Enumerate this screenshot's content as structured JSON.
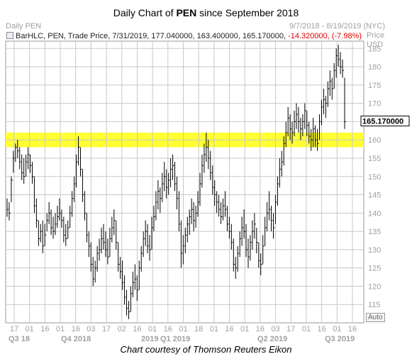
{
  "title_prefix": "Daily Chart of ",
  "title_ticker": "PEN",
  "title_suffix": " since September 2018",
  "panel_label": "Daily PEN",
  "date_range": "9/7/2018 - 8/19/2019 (NYC)",
  "legend": {
    "text": "BarHLC, PEN, Trade Price, 7/31/2019, 177.040000, 163.400000, 165.170000,",
    "change": "-14.320000, (-7.98%)"
  },
  "price_header": [
    "Price",
    "USD"
  ],
  "auto_label": "Auto",
  "last_price_label": "165.170000",
  "caption": "Chart courtesy of Thomson Reuters Eikon",
  "colors": {
    "bars": "#000000",
    "band": "#ffff33",
    "grid": "#c8c8c8",
    "accent_negative": "#e00000"
  },
  "chart_data": {
    "type": "bar",
    "style": "HLC",
    "ylim": [
      110,
      187
    ],
    "y_ticks": [
      115,
      120,
      125,
      130,
      135,
      140,
      145,
      150,
      155,
      160,
      165,
      170,
      175,
      180,
      185
    ],
    "x_ticks": [
      "17",
      "01",
      "16",
      "01",
      "16",
      "03",
      "17",
      "02",
      "16",
      "01",
      "16",
      "01",
      "18",
      "01",
      "16",
      "01",
      "16",
      "03",
      "17",
      "01",
      "16",
      "01",
      "16"
    ],
    "period_labels": [
      "Q3 18",
      "Q4 2018",
      "2019",
      "Q1 2019",
      "Q2 2019",
      "Q3 2019"
    ],
    "highlight_band": [
      158,
      162
    ],
    "last_price": 165.17,
    "grid": true,
    "bars": [
      {
        "h": 144,
        "l": 139,
        "c": 141
      },
      {
        "h": 143,
        "l": 138,
        "c": 140
      },
      {
        "h": 150,
        "l": 143,
        "c": 149
      },
      {
        "h": 157,
        "l": 151,
        "c": 155
      },
      {
        "h": 159,
        "l": 154,
        "c": 158
      },
      {
        "h": 160,
        "l": 155,
        "c": 157
      },
      {
        "h": 158,
        "l": 152,
        "c": 154
      },
      {
        "h": 156,
        "l": 149,
        "c": 151
      },
      {
        "h": 155,
        "l": 148,
        "c": 150
      },
      {
        "h": 156,
        "l": 150,
        "c": 154
      },
      {
        "h": 158,
        "l": 152,
        "c": 156
      },
      {
        "h": 156,
        "l": 151,
        "c": 153
      },
      {
        "h": 154,
        "l": 148,
        "c": 150
      },
      {
        "h": 150,
        "l": 140,
        "c": 142
      },
      {
        "h": 144,
        "l": 136,
        "c": 138
      },
      {
        "h": 138,
        "l": 131,
        "c": 133
      },
      {
        "h": 137,
        "l": 132,
        "c": 135
      },
      {
        "h": 138,
        "l": 129,
        "c": 131
      },
      {
        "h": 137,
        "l": 131,
        "c": 134
      },
      {
        "h": 140,
        "l": 135,
        "c": 138
      },
      {
        "h": 143,
        "l": 137,
        "c": 140
      },
      {
        "h": 141,
        "l": 134,
        "c": 136
      },
      {
        "h": 139,
        "l": 133,
        "c": 135
      },
      {
        "h": 140,
        "l": 134,
        "c": 137
      },
      {
        "h": 142,
        "l": 136,
        "c": 139
      },
      {
        "h": 144,
        "l": 138,
        "c": 140
      },
      {
        "h": 141,
        "l": 136,
        "c": 138
      },
      {
        "h": 139,
        "l": 132,
        "c": 134
      },
      {
        "h": 137,
        "l": 131,
        "c": 133
      },
      {
        "h": 138,
        "l": 133,
        "c": 136
      },
      {
        "h": 142,
        "l": 136,
        "c": 140
      },
      {
        "h": 146,
        "l": 139,
        "c": 144
      },
      {
        "h": 150,
        "l": 143,
        "c": 148
      },
      {
        "h": 156,
        "l": 147,
        "c": 154
      },
      {
        "h": 161,
        "l": 153,
        "c": 158
      },
      {
        "h": 158,
        "l": 150,
        "c": 152
      },
      {
        "h": 152,
        "l": 143,
        "c": 145
      },
      {
        "h": 146,
        "l": 138,
        "c": 140
      },
      {
        "h": 140,
        "l": 132,
        "c": 134
      },
      {
        "h": 135,
        "l": 128,
        "c": 131
      },
      {
        "h": 132,
        "l": 124,
        "c": 126
      },
      {
        "h": 128,
        "l": 120,
        "c": 122
      },
      {
        "h": 127,
        "l": 121,
        "c": 125
      },
      {
        "h": 131,
        "l": 124,
        "c": 129
      },
      {
        "h": 133,
        "l": 127,
        "c": 130
      },
      {
        "h": 136,
        "l": 129,
        "c": 133
      },
      {
        "h": 137,
        "l": 130,
        "c": 132
      },
      {
        "h": 135,
        "l": 128,
        "c": 130
      },
      {
        "h": 133,
        "l": 126,
        "c": 128
      },
      {
        "h": 136,
        "l": 128,
        "c": 133
      },
      {
        "h": 139,
        "l": 132,
        "c": 136
      },
      {
        "h": 141,
        "l": 134,
        "c": 138
      },
      {
        "h": 138,
        "l": 130,
        "c": 132
      },
      {
        "h": 132,
        "l": 124,
        "c": 126
      },
      {
        "h": 128,
        "l": 122,
        "c": 124
      },
      {
        "h": 127,
        "l": 119,
        "c": 121
      },
      {
        "h": 123,
        "l": 115,
        "c": 117
      },
      {
        "h": 119,
        "l": 112,
        "c": 114
      },
      {
        "h": 116,
        "l": 111,
        "c": 113
      },
      {
        "h": 120,
        "l": 113,
        "c": 118
      },
      {
        "h": 124,
        "l": 117,
        "c": 121
      },
      {
        "h": 126,
        "l": 119,
        "c": 122
      },
      {
        "h": 123,
        "l": 116,
        "c": 119
      },
      {
        "h": 127,
        "l": 119,
        "c": 125
      },
      {
        "h": 131,
        "l": 124,
        "c": 129
      },
      {
        "h": 135,
        "l": 128,
        "c": 133
      },
      {
        "h": 138,
        "l": 131,
        "c": 135
      },
      {
        "h": 137,
        "l": 129,
        "c": 131
      },
      {
        "h": 134,
        "l": 127,
        "c": 130
      },
      {
        "h": 139,
        "l": 130,
        "c": 136
      },
      {
        "h": 142,
        "l": 135,
        "c": 139
      },
      {
        "h": 146,
        "l": 138,
        "c": 143
      },
      {
        "h": 149,
        "l": 141,
        "c": 146
      },
      {
        "h": 147,
        "l": 140,
        "c": 144
      },
      {
        "h": 151,
        "l": 143,
        "c": 148
      },
      {
        "h": 154,
        "l": 146,
        "c": 150
      },
      {
        "h": 152,
        "l": 144,
        "c": 147
      },
      {
        "h": 151,
        "l": 145,
        "c": 149
      },
      {
        "h": 155,
        "l": 147,
        "c": 152
      },
      {
        "h": 156,
        "l": 149,
        "c": 153
      },
      {
        "h": 154,
        "l": 146,
        "c": 148
      },
      {
        "h": 150,
        "l": 141,
        "c": 144
      },
      {
        "h": 146,
        "l": 135,
        "c": 137
      },
      {
        "h": 138,
        "l": 125,
        "c": 129
      },
      {
        "h": 134,
        "l": 126,
        "c": 131
      },
      {
        "h": 136,
        "l": 129,
        "c": 134
      },
      {
        "h": 139,
        "l": 132,
        "c": 137
      },
      {
        "h": 141,
        "l": 134,
        "c": 139
      },
      {
        "h": 144,
        "l": 137,
        "c": 141
      },
      {
        "h": 143,
        "l": 135,
        "c": 138
      },
      {
        "h": 142,
        "l": 136,
        "c": 140
      },
      {
        "h": 146,
        "l": 139,
        "c": 143
      },
      {
        "h": 151,
        "l": 142,
        "c": 148
      },
      {
        "h": 156,
        "l": 147,
        "c": 153
      },
      {
        "h": 159,
        "l": 151,
        "c": 156
      },
      {
        "h": 162,
        "l": 154,
        "c": 158
      },
      {
        "h": 160,
        "l": 152,
        "c": 155
      },
      {
        "h": 157,
        "l": 149,
        "c": 151
      },
      {
        "h": 153,
        "l": 145,
        "c": 147
      },
      {
        "h": 149,
        "l": 142,
        "c": 145
      },
      {
        "h": 146,
        "l": 140,
        "c": 143
      },
      {
        "h": 145,
        "l": 139,
        "c": 141
      },
      {
        "h": 143,
        "l": 137,
        "c": 139
      },
      {
        "h": 144,
        "l": 138,
        "c": 142
      },
      {
        "h": 146,
        "l": 139,
        "c": 141
      },
      {
        "h": 142,
        "l": 135,
        "c": 137
      },
      {
        "h": 139,
        "l": 133,
        "c": 135
      },
      {
        "h": 137,
        "l": 130,
        "c": 132
      },
      {
        "h": 133,
        "l": 124,
        "c": 126
      },
      {
        "h": 128,
        "l": 122,
        "c": 125
      },
      {
        "h": 131,
        "l": 124,
        "c": 129
      },
      {
        "h": 135,
        "l": 128,
        "c": 133
      },
      {
        "h": 139,
        "l": 131,
        "c": 136
      },
      {
        "h": 141,
        "l": 133,
        "c": 135
      },
      {
        "h": 137,
        "l": 128,
        "c": 130
      },
      {
        "h": 133,
        "l": 125,
        "c": 128
      },
      {
        "h": 134,
        "l": 127,
        "c": 132
      },
      {
        "h": 138,
        "l": 130,
        "c": 135
      },
      {
        "h": 140,
        "l": 133,
        "c": 137
      },
      {
        "h": 136,
        "l": 129,
        "c": 132
      },
      {
        "h": 132,
        "l": 125,
        "c": 127
      },
      {
        "h": 129,
        "l": 123,
        "c": 126
      },
      {
        "h": 134,
        "l": 126,
        "c": 131
      },
      {
        "h": 139,
        "l": 131,
        "c": 136
      },
      {
        "h": 143,
        "l": 135,
        "c": 140
      },
      {
        "h": 146,
        "l": 138,
        "c": 141
      },
      {
        "h": 142,
        "l": 135,
        "c": 138
      },
      {
        "h": 140,
        "l": 133,
        "c": 136
      },
      {
        "h": 145,
        "l": 137,
        "c": 143
      },
      {
        "h": 150,
        "l": 142,
        "c": 148
      },
      {
        "h": 155,
        "l": 147,
        "c": 152
      },
      {
        "h": 157,
        "l": 150,
        "c": 154
      },
      {
        "h": 161,
        "l": 153,
        "c": 159
      },
      {
        "h": 165,
        "l": 158,
        "c": 162
      },
      {
        "h": 169,
        "l": 161,
        "c": 166
      },
      {
        "h": 167,
        "l": 160,
        "c": 163
      },
      {
        "h": 165,
        "l": 159,
        "c": 162
      },
      {
        "h": 168,
        "l": 161,
        "c": 165
      },
      {
        "h": 170,
        "l": 163,
        "c": 167
      },
      {
        "h": 169,
        "l": 162,
        "c": 165
      },
      {
        "h": 166,
        "l": 160,
        "c": 163
      },
      {
        "h": 167,
        "l": 161,
        "c": 165
      },
      {
        "h": 170,
        "l": 163,
        "c": 168
      },
      {
        "h": 168,
        "l": 161,
        "c": 164
      },
      {
        "h": 165,
        "l": 159,
        "c": 161
      },
      {
        "h": 163,
        "l": 157,
        "c": 160
      },
      {
        "h": 166,
        "l": 158,
        "c": 163
      },
      {
        "h": 164,
        "l": 158,
        "c": 160
      },
      {
        "h": 163,
        "l": 157,
        "c": 159
      },
      {
        "h": 167,
        "l": 160,
        "c": 165
      },
      {
        "h": 171,
        "l": 164,
        "c": 169
      },
      {
        "h": 174,
        "l": 167,
        "c": 171
      },
      {
        "h": 172,
        "l": 166,
        "c": 170
      },
      {
        "h": 176,
        "l": 169,
        "c": 174
      },
      {
        "h": 179,
        "l": 172,
        "c": 176
      },
      {
        "h": 177,
        "l": 171,
        "c": 174
      },
      {
        "h": 181,
        "l": 174,
        "c": 179
      },
      {
        "h": 185,
        "l": 177,
        "c": 183
      },
      {
        "h": 186,
        "l": 180,
        "c": 182
      },
      {
        "h": 184,
        "l": 178,
        "c": 180
      },
      {
        "h": 182,
        "l": 177,
        "c": 179
      },
      {
        "h": 177,
        "l": 163,
        "c": 165
      }
    ]
  }
}
